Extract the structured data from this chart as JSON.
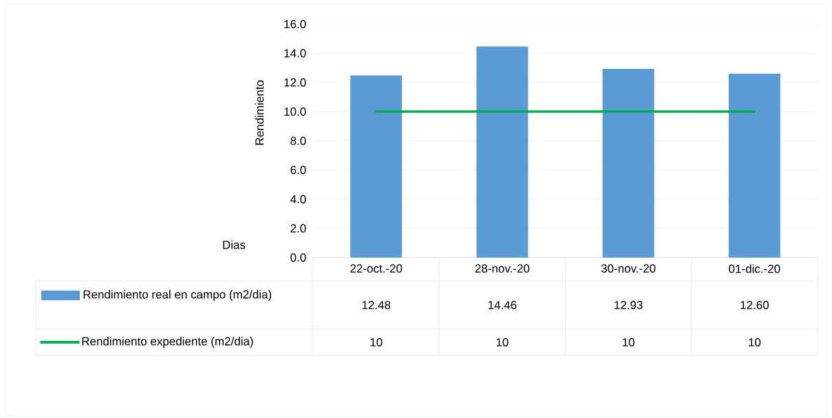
{
  "chart_data": {
    "type": "bar",
    "ylabel": "Rendimiento",
    "xlabel": "Dias",
    "categories": [
      "22-oct.-20",
      "28-nov.-20",
      "30-nov.-20",
      "01-dic.-20"
    ],
    "series": [
      {
        "name": "Rendimiento real en campo (m2/dia)",
        "type": "bar",
        "color": "#5b9bd5",
        "values": [
          12.48,
          14.46,
          12.93,
          12.6
        ],
        "value_labels": [
          "12.48",
          "14.46",
          "12.93",
          "12.60"
        ]
      },
      {
        "name": "Rendimiento expediente (m2/dia)",
        "type": "line",
        "color": "#00b050",
        "values": [
          10,
          10,
          10,
          10
        ],
        "value_labels": [
          "10",
          "10",
          "10",
          "10"
        ]
      }
    ],
    "ylim": [
      0,
      16
    ],
    "yticks": [
      {
        "value": 0,
        "label": "0.0"
      },
      {
        "value": 2,
        "label": "2.0"
      },
      {
        "value": 4,
        "label": "4.0"
      },
      {
        "value": 6,
        "label": "6.0"
      },
      {
        "value": 8,
        "label": "8.0"
      },
      {
        "value": 10,
        "label": "10.0"
      },
      {
        "value": 12,
        "label": "12.0"
      },
      {
        "value": 14,
        "label": "14.0"
      },
      {
        "value": 16,
        "label": "16.0"
      }
    ],
    "grid": "y",
    "legend": "bottom"
  }
}
